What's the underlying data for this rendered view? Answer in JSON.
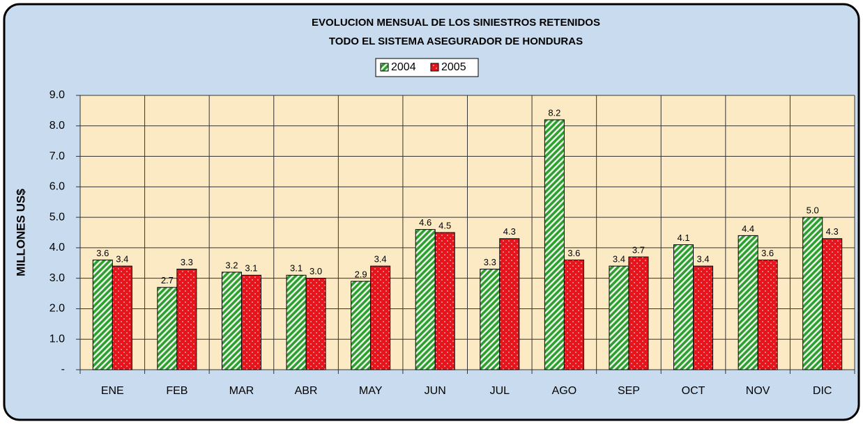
{
  "chart_data": {
    "type": "bar",
    "title": [
      "EVOLUCION MENSUAL DE LOS SINIESTROS RETENIDOS",
      "TODO EL SISTEMA ASEGURADOR DE HONDURAS"
    ],
    "y_label": "MILLONES US$",
    "categories": [
      "ENE",
      "FEB",
      "MAR",
      "ABR",
      "MAY",
      "JUN",
      "JUL",
      "AGO",
      "SEP",
      "OCT",
      "NOV",
      "DIC"
    ],
    "series": [
      {
        "name": "2004",
        "color": "#2e9e2e",
        "values": [
          3.6,
          2.7,
          3.2,
          3.1,
          2.9,
          4.6,
          3.3,
          8.2,
          3.4,
          4.1,
          4.4,
          5.0
        ],
        "value_labels": [
          "3.6",
          "2.7",
          "3.2",
          "3.1",
          "2.9",
          "4.6",
          "3.3",
          "8.2",
          "3.4",
          "4.1",
          "4.4",
          "5.0"
        ]
      },
      {
        "name": "2005",
        "color": "#e8141c",
        "values": [
          3.4,
          3.3,
          3.1,
          3.0,
          3.4,
          4.5,
          4.3,
          3.6,
          3.7,
          3.4,
          3.6,
          4.3
        ],
        "value_labels": [
          "3.4",
          "3.3",
          "3.1",
          "3.0",
          "3.4",
          "4.5",
          "4.3",
          "3.6",
          "3.7",
          "3.4",
          "3.6",
          "4.3"
        ]
      }
    ],
    "ylim": [
      0,
      9
    ],
    "yticks": [
      {
        "value": 0,
        "label": "-"
      },
      {
        "value": 1,
        "label": "1.0"
      },
      {
        "value": 2,
        "label": "2.0"
      },
      {
        "value": 3,
        "label": "3.0"
      },
      {
        "value": 4,
        "label": "4.0"
      },
      {
        "value": 5,
        "label": "5.0"
      },
      {
        "value": 6,
        "label": "6.0"
      },
      {
        "value": 7,
        "label": "7.0"
      },
      {
        "value": 8,
        "label": "8.0"
      },
      {
        "value": 9,
        "label": "9.0"
      }
    ],
    "grid": true,
    "legend": "top"
  }
}
